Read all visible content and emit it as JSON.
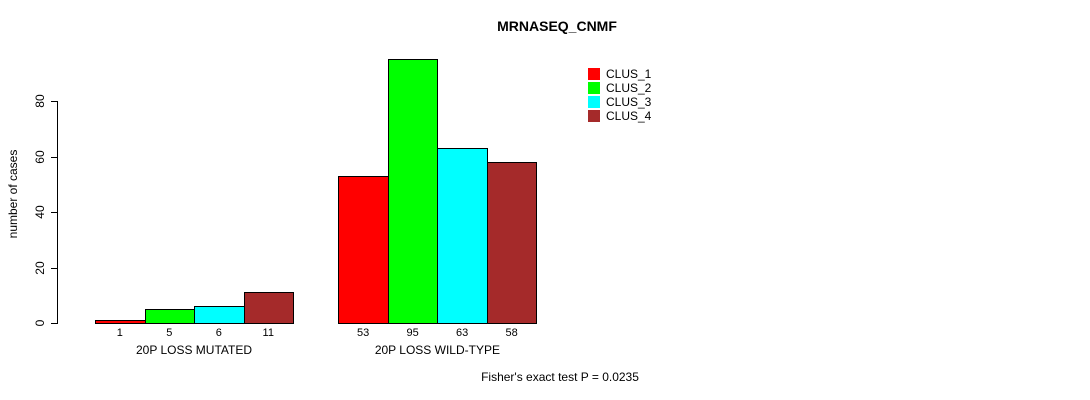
{
  "chart_data": {
    "type": "bar",
    "title": "MRNASEQ_CNMF",
    "ylabel": "number of cases",
    "xlabel": "",
    "categories": [
      "20P LOSS MUTATED",
      "20P LOSS WILD-TYPE"
    ],
    "series": [
      {
        "name": "CLUS_1",
        "color": "#FF0000",
        "values": [
          1,
          53
        ]
      },
      {
        "name": "CLUS_2",
        "color": "#00FF00",
        "values": [
          5,
          95
        ]
      },
      {
        "name": "CLUS_3",
        "color": "#00FFFF",
        "values": [
          6,
          63
        ]
      },
      {
        "name": "CLUS_4",
        "color": "#A52A2A",
        "values": [
          11,
          58
        ]
      }
    ],
    "yticks": [
      0,
      20,
      40,
      60,
      80
    ],
    "ylim": [
      0,
      95
    ],
    "grid": false,
    "bar_value_labels": true,
    "legend_position": "topright",
    "annotation": "Fisher's exact test P = 0.0235",
    "axis_color": "#000000",
    "bar_border_color": "#000000",
    "background_color": "#FFFFFF"
  }
}
